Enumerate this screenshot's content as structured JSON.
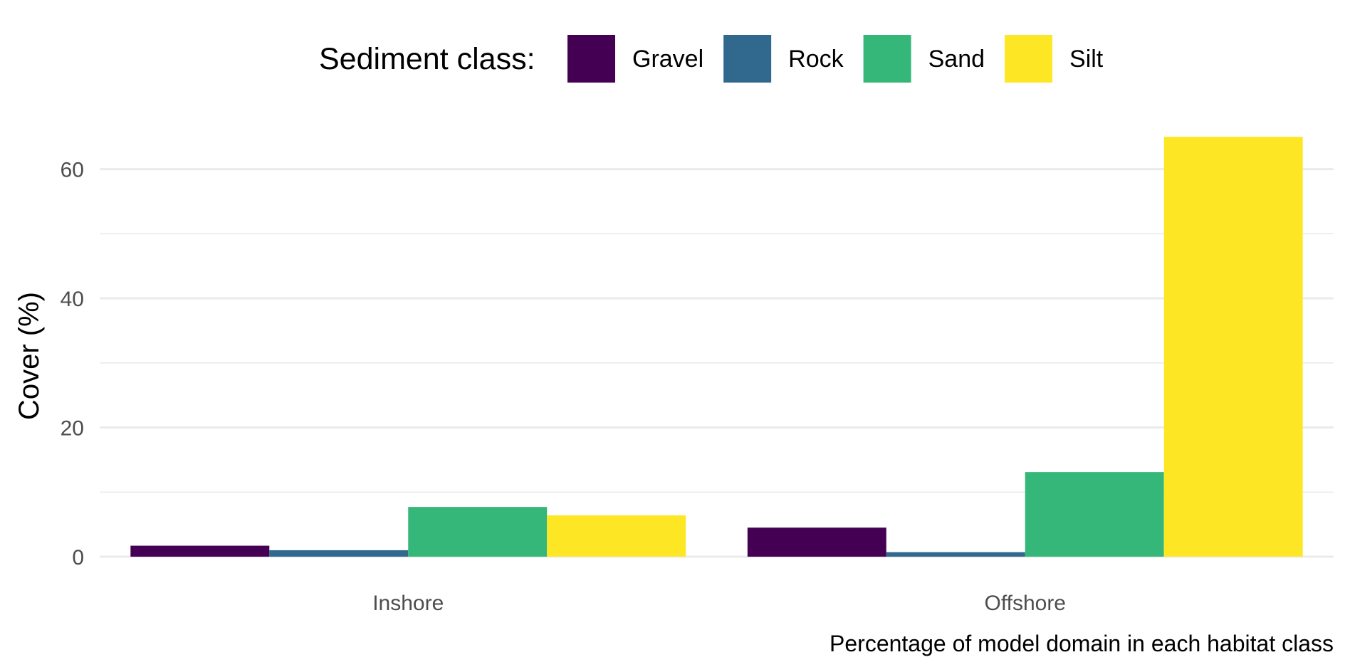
{
  "chart_data": {
    "type": "bar",
    "title": "",
    "xlabel": "",
    "ylabel": "Cover (%)",
    "caption": "Percentage of model domain in each habitat class",
    "categories": [
      "Inshore",
      "Offshore"
    ],
    "series": [
      {
        "name": "Gravel",
        "color": "#440154",
        "values": [
          1.7,
          4.5
        ]
      },
      {
        "name": "Rock",
        "color": "#31688E",
        "values": [
          1.0,
          0.7
        ]
      },
      {
        "name": "Sand",
        "color": "#35B779",
        "values": [
          7.7,
          13.1
        ]
      },
      {
        "name": "Silt",
        "color": "#FDE725",
        "values": [
          6.4,
          65.0
        ]
      }
    ],
    "ylim": [
      0,
      68
    ],
    "yticks": [
      0,
      20,
      40,
      60
    ],
    "grid": true,
    "legend": {
      "title": "Sediment class:",
      "position": "top"
    }
  }
}
